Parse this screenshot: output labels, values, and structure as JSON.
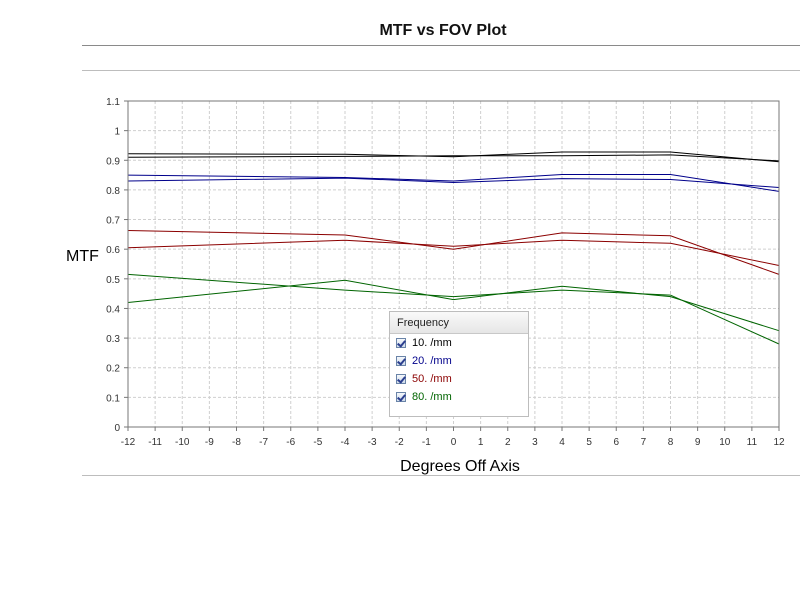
{
  "title": "MTF vs FOV Plot",
  "chart_data": {
    "type": "line",
    "xlabel": "Degrees Off Axis",
    "ylabel": "MTF",
    "xlim": [
      -12,
      12
    ],
    "ylim": [
      0,
      1.1
    ],
    "x_ticks": [
      -12,
      -11,
      -10,
      -9,
      -8,
      -7,
      -6,
      -5,
      -4,
      -3,
      -2,
      -1,
      0,
      1,
      2,
      3,
      4,
      5,
      6,
      7,
      8,
      9,
      10,
      11,
      12
    ],
    "y_ticks": [
      0,
      0.1,
      0.2,
      0.3,
      0.4,
      0.5,
      0.6,
      0.7,
      0.8,
      0.9,
      1,
      1.1
    ],
    "grid": true,
    "legend": {
      "title": "Frequency",
      "placement": "bottom-center",
      "entries": [
        {
          "label": "10. /mm",
          "color": "#000000",
          "checked": true
        },
        {
          "label": "20. /mm",
          "color": "#00008b",
          "checked": true
        },
        {
          "label": "50. /mm",
          "color": "#8b0000",
          "checked": true
        },
        {
          "label": "80. /mm",
          "color": "#006400",
          "checked": true
        }
      ]
    },
    "series": [
      {
        "name": "10. /mm",
        "color": "#000000",
        "x": [
          -12,
          -4,
          0,
          4,
          8,
          12
        ],
        "y": [
          0.922,
          0.92,
          0.912,
          0.928,
          0.928,
          0.895
        ]
      },
      {
        "name": "10. /mm",
        "color": "#000000",
        "x": [
          -12,
          -4,
          0,
          4,
          8,
          12
        ],
        "y": [
          0.91,
          0.913,
          0.915,
          0.915,
          0.918,
          0.898
        ]
      },
      {
        "name": "20. /mm",
        "color": "#00008b",
        "x": [
          -12,
          -4,
          0,
          4,
          8,
          12
        ],
        "y": [
          0.85,
          0.842,
          0.83,
          0.852,
          0.852,
          0.795
        ]
      },
      {
        "name": "20. /mm",
        "color": "#00008b",
        "x": [
          -12,
          -4,
          0,
          4,
          8,
          12
        ],
        "y": [
          0.83,
          0.84,
          0.825,
          0.838,
          0.835,
          0.808
        ]
      },
      {
        "name": "50. /mm",
        "color": "#8b0000",
        "x": [
          -12,
          -4,
          0,
          4,
          8,
          12
        ],
        "y": [
          0.663,
          0.648,
          0.6,
          0.655,
          0.645,
          0.515
        ]
      },
      {
        "name": "50. /mm",
        "color": "#8b0000",
        "x": [
          -12,
          -4,
          0,
          4,
          8,
          12
        ],
        "y": [
          0.605,
          0.63,
          0.61,
          0.63,
          0.62,
          0.545
        ]
      },
      {
        "name": "80. /mm",
        "color": "#006400",
        "x": [
          -12,
          -4,
          0,
          4,
          8,
          12
        ],
        "y": [
          0.515,
          0.462,
          0.44,
          0.462,
          0.445,
          0.28
        ]
      },
      {
        "name": "80. /mm",
        "color": "#006400",
        "x": [
          -12,
          -4,
          0,
          4,
          8,
          12
        ],
        "y": [
          0.42,
          0.495,
          0.43,
          0.475,
          0.44,
          0.325
        ]
      }
    ]
  }
}
